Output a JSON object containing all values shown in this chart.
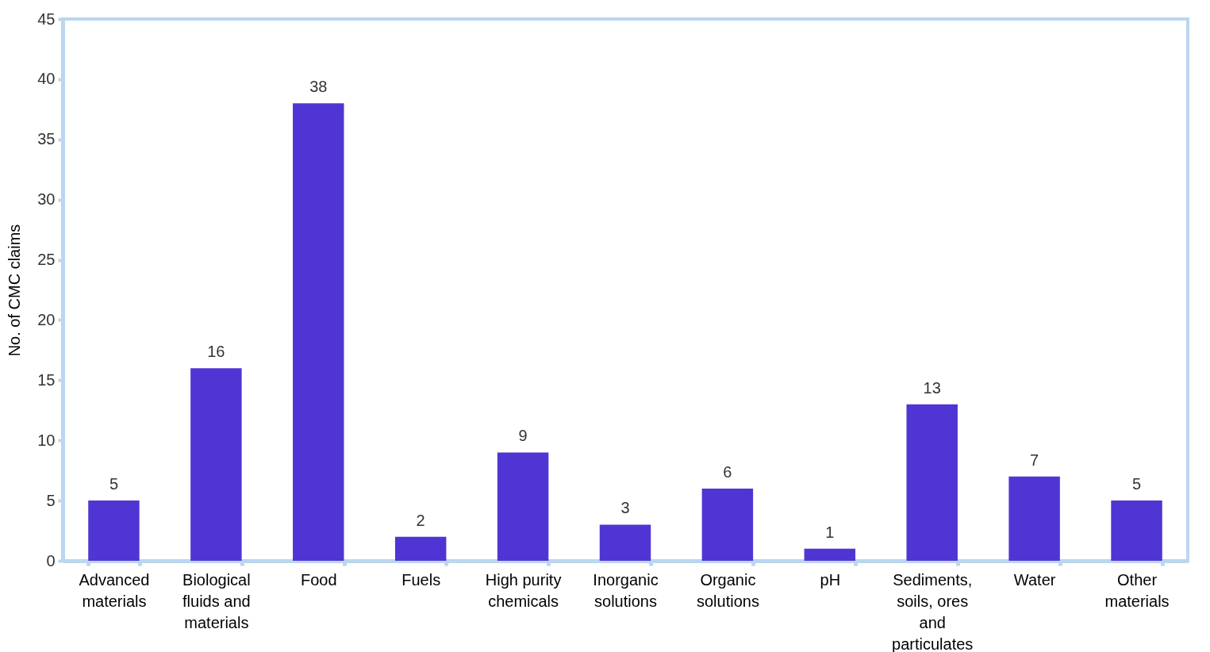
{
  "chart_data": {
    "type": "bar",
    "ylabel": "No. of CMC claims",
    "categories": [
      "Advanced materials",
      "Biological fluids and materials",
      "Food",
      "Fuels",
      "High purity chemicals",
      "Inorganic solutions",
      "Organic solutions",
      "pH",
      "Sediments, soils, ores and particulates",
      "Water",
      "Other materials"
    ],
    "values": [
      5,
      16,
      38,
      2,
      9,
      3,
      6,
      1,
      13,
      7,
      5
    ],
    "color": "#5035d4",
    "ylim": [
      0,
      45
    ],
    "yticks": [
      0,
      5,
      10,
      15,
      20,
      25,
      30,
      35,
      40,
      45
    ],
    "data_labels": true
  }
}
